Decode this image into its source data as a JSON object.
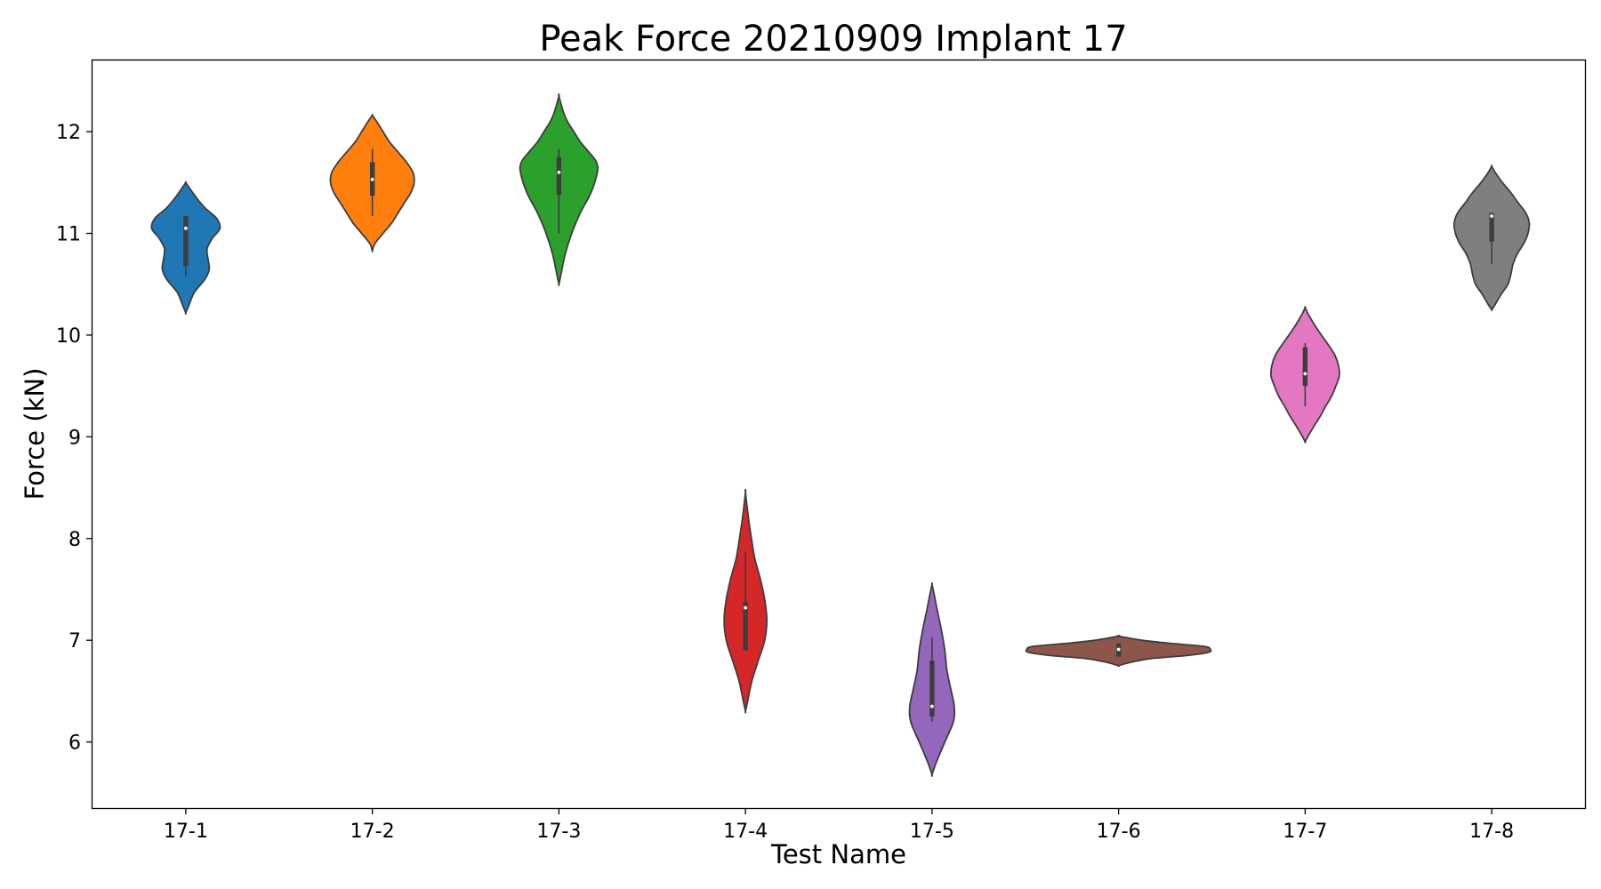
{
  "chart_data": {
    "type": "violin",
    "title": "Peak Force 20210909 Implant 17",
    "xlabel": "Test Name",
    "ylabel": "Force (kN)",
    "ylim": [
      5.35,
      12.7
    ],
    "yticks": [
      6,
      7,
      8,
      9,
      10,
      11,
      12
    ],
    "grid": false,
    "categories": [
      "17-1",
      "17-2",
      "17-3",
      "17-4",
      "17-5",
      "17-6",
      "17-7",
      "17-8"
    ],
    "series": [
      {
        "name": "17-1",
        "color": "#1f77b4",
        "range": [
          10.22,
          11.5
        ],
        "box": [
          10.68,
          11.17
        ],
        "whisker": [
          10.58,
          11.17
        ],
        "median": 11.05,
        "profile": [
          [
            10.22,
            0.0
          ],
          [
            10.3,
            0.08
          ],
          [
            10.42,
            0.2
          ],
          [
            10.55,
            0.45
          ],
          [
            10.65,
            0.55
          ],
          [
            10.75,
            0.52
          ],
          [
            10.85,
            0.5
          ],
          [
            10.95,
            0.62
          ],
          [
            11.05,
            0.8
          ],
          [
            11.15,
            0.72
          ],
          [
            11.25,
            0.45
          ],
          [
            11.35,
            0.25
          ],
          [
            11.45,
            0.08
          ],
          [
            11.5,
            0.0
          ]
        ]
      },
      {
        "name": "17-2",
        "color": "#ff7f0e",
        "range": [
          10.83,
          12.16
        ],
        "box": [
          11.37,
          11.7
        ],
        "whisker": [
          11.17,
          11.83
        ],
        "median": 11.53,
        "profile": [
          [
            10.83,
            0.0
          ],
          [
            10.9,
            0.06
          ],
          [
            11.0,
            0.25
          ],
          [
            11.1,
            0.45
          ],
          [
            11.2,
            0.6
          ],
          [
            11.3,
            0.75
          ],
          [
            11.4,
            0.9
          ],
          [
            11.5,
            0.98
          ],
          [
            11.6,
            0.95
          ],
          [
            11.7,
            0.8
          ],
          [
            11.8,
            0.6
          ],
          [
            11.9,
            0.4
          ],
          [
            12.0,
            0.25
          ],
          [
            12.1,
            0.1
          ],
          [
            12.16,
            0.0
          ]
        ]
      },
      {
        "name": "17-3",
        "color": "#2ca02c",
        "range": [
          10.5,
          12.35
        ],
        "box": [
          11.38,
          11.75
        ],
        "whisker": [
          11.0,
          11.83
        ],
        "median": 11.6,
        "profile": [
          [
            10.5,
            0.0
          ],
          [
            10.6,
            0.05
          ],
          [
            10.8,
            0.15
          ],
          [
            11.0,
            0.3
          ],
          [
            11.2,
            0.5
          ],
          [
            11.4,
            0.75
          ],
          [
            11.6,
            0.9
          ],
          [
            11.7,
            0.88
          ],
          [
            11.8,
            0.7
          ],
          [
            11.9,
            0.5
          ],
          [
            12.0,
            0.35
          ],
          [
            12.1,
            0.2
          ],
          [
            12.2,
            0.1
          ],
          [
            12.35,
            0.0
          ]
        ]
      },
      {
        "name": "17-4",
        "color": "#d62728",
        "range": [
          6.3,
          8.45
        ],
        "box": [
          6.9,
          7.38
        ],
        "whisker": [
          6.9,
          7.87
        ],
        "median": 7.32,
        "profile": [
          [
            6.3,
            0.0
          ],
          [
            6.4,
            0.05
          ],
          [
            6.6,
            0.15
          ],
          [
            6.8,
            0.3
          ],
          [
            7.0,
            0.45
          ],
          [
            7.2,
            0.5
          ],
          [
            7.4,
            0.45
          ],
          [
            7.6,
            0.35
          ],
          [
            7.8,
            0.22
          ],
          [
            8.0,
            0.14
          ],
          [
            8.2,
            0.07
          ],
          [
            8.45,
            0.0
          ]
        ]
      },
      {
        "name": "17-5",
        "color": "#9467bd",
        "range": [
          5.68,
          7.55
        ],
        "box": [
          6.25,
          6.8
        ],
        "whisker": [
          6.2,
          7.03
        ],
        "median": 6.35,
        "profile": [
          [
            5.68,
            0.0
          ],
          [
            5.8,
            0.1
          ],
          [
            6.0,
            0.3
          ],
          [
            6.2,
            0.5
          ],
          [
            6.35,
            0.52
          ],
          [
            6.5,
            0.45
          ],
          [
            6.7,
            0.35
          ],
          [
            6.9,
            0.3
          ],
          [
            7.1,
            0.22
          ],
          [
            7.3,
            0.12
          ],
          [
            7.45,
            0.05
          ],
          [
            7.55,
            0.0
          ]
        ]
      },
      {
        "name": "17-6",
        "color": "#8c564b",
        "range": [
          6.75,
          7.04
        ],
        "box": [
          6.84,
          6.97
        ],
        "whisker": [
          6.84,
          6.97
        ],
        "median": 6.91,
        "profile": [
          [
            6.75,
            0.0
          ],
          [
            6.78,
            0.25
          ],
          [
            6.82,
            0.75
          ],
          [
            6.85,
            1.6
          ],
          [
            6.88,
            2.1
          ],
          [
            6.91,
            2.15
          ],
          [
            6.94,
            2.0
          ],
          [
            6.97,
            1.2
          ],
          [
            7.0,
            0.55
          ],
          [
            7.04,
            0.0
          ]
        ]
      },
      {
        "name": "17-7",
        "color": "#e377c2",
        "range": [
          8.95,
          10.27
        ],
        "box": [
          9.5,
          9.88
        ],
        "whisker": [
          9.3,
          9.92
        ],
        "median": 9.62,
        "profile": [
          [
            8.95,
            0.0
          ],
          [
            9.0,
            0.06
          ],
          [
            9.1,
            0.2
          ],
          [
            9.2,
            0.35
          ],
          [
            9.3,
            0.48
          ],
          [
            9.4,
            0.62
          ],
          [
            9.5,
            0.72
          ],
          [
            9.6,
            0.8
          ],
          [
            9.7,
            0.78
          ],
          [
            9.8,
            0.7
          ],
          [
            9.9,
            0.55
          ],
          [
            10.0,
            0.38
          ],
          [
            10.1,
            0.22
          ],
          [
            10.2,
            0.08
          ],
          [
            10.27,
            0.0
          ]
        ]
      },
      {
        "name": "17-8",
        "color": "#7f7f7f",
        "range": [
          10.25,
          11.66
        ],
        "box": [
          10.92,
          11.2
        ],
        "whisker": [
          10.7,
          11.2
        ],
        "median": 11.17,
        "profile": [
          [
            10.25,
            0.0
          ],
          [
            10.3,
            0.08
          ],
          [
            10.4,
            0.22
          ],
          [
            10.5,
            0.38
          ],
          [
            10.6,
            0.45
          ],
          [
            10.7,
            0.5
          ],
          [
            10.8,
            0.6
          ],
          [
            10.9,
            0.75
          ],
          [
            11.0,
            0.85
          ],
          [
            11.1,
            0.88
          ],
          [
            11.2,
            0.8
          ],
          [
            11.3,
            0.62
          ],
          [
            11.4,
            0.45
          ],
          [
            11.5,
            0.25
          ],
          [
            11.6,
            0.08
          ],
          [
            11.66,
            0.0
          ]
        ]
      }
    ]
  }
}
